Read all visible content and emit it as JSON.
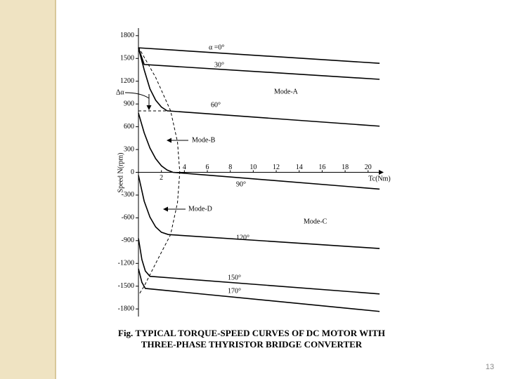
{
  "page_number": "13",
  "chart_data": {
    "type": "line",
    "title_lines": [
      "Fig. TYPICAL TORQUE-SPEED CURVES OF DC MOTOR WITH",
      "THREE-PHASE THYRISTOR BRIDGE CONVERTER"
    ],
    "x_label": "Tc(Nm)",
    "y_label": "Speed N(rpm)",
    "xlim": [
      0,
      21.3
    ],
    "ylim": [
      -1900,
      1900
    ],
    "xticks": [
      2,
      4,
      6,
      8,
      10,
      12,
      14,
      16,
      18,
      20
    ],
    "yticks": [
      1800,
      1500,
      1200,
      900,
      600,
      300,
      0,
      -300,
      -600,
      -900,
      -1200,
      -1500,
      -1800
    ],
    "grid": false,
    "series": [
      {
        "name": "α =0°",
        "color": "#000000",
        "x": [
          0,
          21
        ],
        "values": [
          1640,
          1436
        ]
      },
      {
        "name": "30°",
        "color": "#000000",
        "x": [
          0,
          0.5,
          21
        ],
        "values": [
          1640,
          1420,
          1225
        ]
      },
      {
        "name": "60°",
        "color": "#000000",
        "x": [
          0,
          0.5,
          1,
          1.5,
          2,
          2.5,
          21
        ],
        "values": [
          1640,
          1350,
          1100,
          950,
          860,
          810,
          608
        ]
      },
      {
        "name": "90°",
        "color": "#000000",
        "x": [
          0,
          0.5,
          1,
          1.5,
          2,
          2.5,
          3,
          21
        ],
        "values": [
          780,
          520,
          320,
          180,
          85,
          30,
          0,
          -221
        ]
      },
      {
        "name": "120°",
        "color": "#000000",
        "x": [
          0,
          0.5,
          1,
          1.5,
          2,
          2.6,
          21
        ],
        "values": [
          -40,
          -380,
          -590,
          -720,
          -790,
          -820,
          -1004
        ]
      },
      {
        "name": "150°",
        "color": "#000000",
        "x": [
          0,
          0.3,
          0.6,
          1,
          21
        ],
        "values": [
          -870,
          -1150,
          -1300,
          -1370,
          -1602
        ]
      },
      {
        "name": "170°",
        "color": "#000000",
        "x": [
          0,
          0.3,
          0.6,
          21
        ],
        "values": [
          -1270,
          -1450,
          -1530,
          -1833
        ]
      },
      {
        "color": "#000000",
        "dashed": true,
        "x": [
          0,
          1.5,
          2.8,
          3.4,
          3.6,
          3.4,
          2.8,
          1.5,
          0.5,
          0
        ],
        "values": [
          1650,
          1250,
          810,
          400,
          0,
          -400,
          -820,
          -1200,
          -1500,
          -1620
        ]
      }
    ],
    "annotations": [
      "Mode-A",
      "Mode-B",
      "Mode-C",
      "Mode-D",
      "Δα"
    ]
  }
}
